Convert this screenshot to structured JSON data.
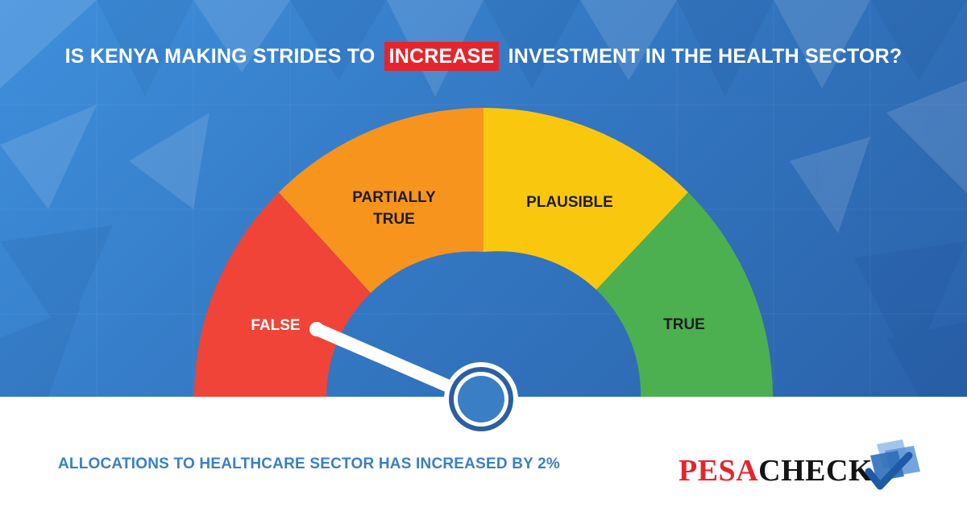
{
  "headline": {
    "before": "IS KENYA MAKING STRIDES TO",
    "highlight": "INCREASE",
    "after": "INVESTMENT IN THE HEALTH SECTOR?"
  },
  "gauge": {
    "segments": [
      {
        "label": "FALSE",
        "color": "#ef4437"
      },
      {
        "label_line1": "PARTIALLY",
        "label_line2": "TRUE",
        "color": "#f7941d"
      },
      {
        "label": "PLAUSIBLE",
        "color": "#f9c80e"
      },
      {
        "label": "TRUE",
        "color": "#4caf50"
      }
    ],
    "needle_points_to": "FALSE",
    "hub_color": "#3a7fc6"
  },
  "verdict": "ALLOCATIONS TO HEALTHCARE SECTOR HAS INCREASED BY 2%",
  "logo": {
    "part1": "PESA",
    "part2": "CHECK",
    "icon": "check-mark-icon"
  },
  "colors": {
    "background_blue": "#3479c4",
    "highlight_red": "#e5252d",
    "verdict_text": "#3a7fc6"
  }
}
